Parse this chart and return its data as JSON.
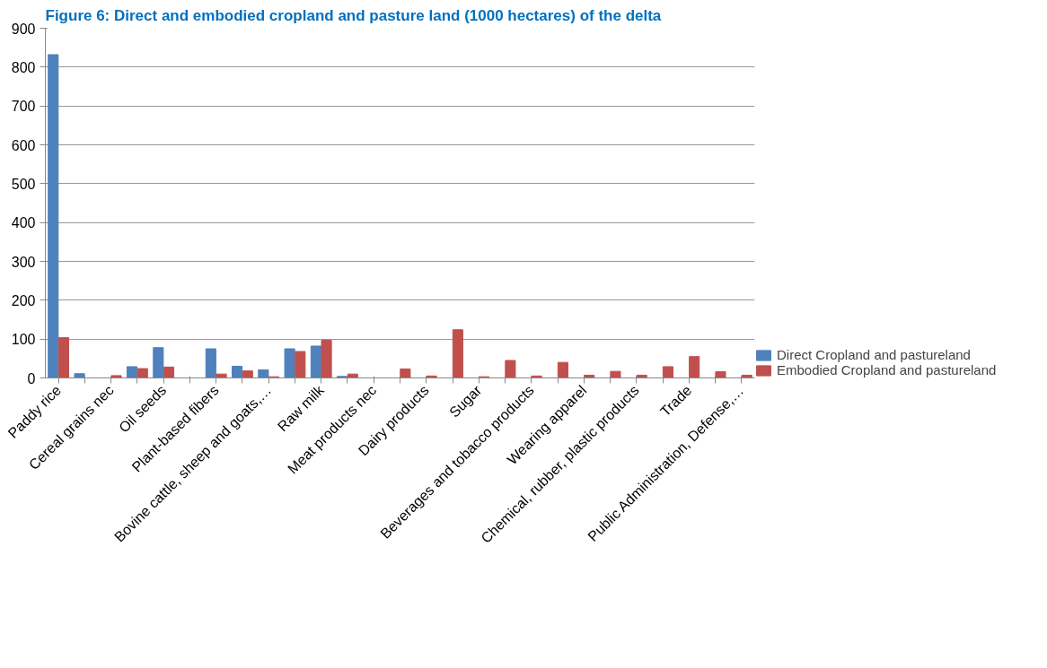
{
  "chart_data": {
    "type": "bar",
    "title": "Figure 6: Direct and embodied cropland and pasture land (1000 hectares) of the delta",
    "categories": [
      "Paddy rice",
      null,
      "Cereal grains nec",
      null,
      "Oil seeds",
      null,
      "Plant-based fibers",
      null,
      "Bovine cattle, sheep and goats,…",
      null,
      "Raw milk",
      null,
      "Meat products nec",
      null,
      "Dairy products",
      null,
      "Sugar",
      null,
      "Beverages and tobacco products",
      null,
      "Wearing apparel",
      null,
      "Chemical, rubber, plastic products",
      null,
      "Trade",
      null,
      "Public Administration, Defense,…"
    ],
    "series": [
      {
        "name": "Direct Cropland and pastureland",
        "color": "#4f81bd",
        "values": [
          832,
          11,
          0,
          29,
          78,
          0,
          75,
          30,
          21,
          75,
          82,
          4,
          0,
          0,
          0,
          0,
          0,
          0,
          0,
          0,
          0,
          0,
          0,
          0,
          0,
          0,
          0
        ]
      },
      {
        "name": "Embodied Cropland and pastureland",
        "color": "#c0504d",
        "values": [
          104,
          0,
          6,
          24,
          28,
          0,
          10,
          18,
          3,
          68,
          97,
          10,
          null,
          23,
          5,
          124,
          3,
          45,
          5,
          40,
          7,
          17,
          7,
          29,
          55,
          16,
          7
        ]
      }
    ],
    "ylim": [
      0,
      900
    ],
    "yticks": [
      0,
      100,
      200,
      300,
      400,
      500,
      600,
      700,
      800,
      900
    ],
    "grid": "y",
    "legend": "bottom right"
  }
}
